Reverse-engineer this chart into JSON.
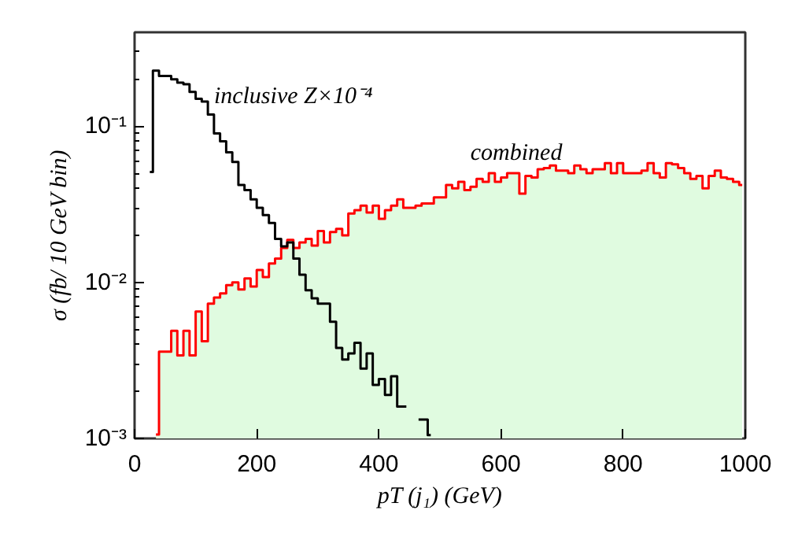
{
  "chart_data": {
    "type": "step",
    "xlabel": "pT (j₁) (GeV)",
    "ylabel": "σ (fb/ 10 GeV bin)",
    "xlim": [
      0,
      1000
    ],
    "xticks": [
      0,
      200,
      400,
      600,
      800,
      1000
    ],
    "ylim": [
      0.001,
      0.4
    ],
    "yticks": [
      {
        "value": 0.001,
        "label": "10⁻³"
      },
      {
        "value": 0.01,
        "label": "10⁻²"
      },
      {
        "value": 0.1,
        "label": "10⁻¹"
      }
    ],
    "log": "y",
    "grid": false,
    "series": [
      {
        "type": "area",
        "name": "combined",
        "color": "#ff0000",
        "x": [
          35,
          45,
          55,
          65,
          75,
          85,
          95,
          105,
          115,
          125,
          135,
          145,
          155,
          165,
          175,
          185,
          195,
          205,
          215,
          225,
          235,
          245,
          255,
          265,
          275,
          285,
          295,
          305,
          315,
          325,
          335,
          345,
          355,
          365,
          375,
          385,
          395,
          405,
          415,
          425,
          435,
          445,
          455,
          465,
          475,
          485,
          495,
          505,
          515,
          525,
          535,
          545,
          555,
          565,
          575,
          585,
          595,
          605,
          615,
          625,
          635,
          645,
          655,
          665,
          675,
          685,
          695,
          705,
          715,
          725,
          735,
          745,
          755,
          765,
          775,
          785,
          795,
          805,
          815,
          825,
          835,
          845,
          855,
          865,
          875,
          885,
          895,
          905,
          915,
          925,
          935,
          945,
          955,
          965,
          975,
          985,
          995
        ],
        "values": [
          0.00106,
          0.0036,
          0.0036,
          0.0049,
          0.0034,
          0.0049,
          0.0034,
          0.0065,
          0.0042,
          0.0073,
          0.008,
          0.0085,
          0.0096,
          0.01,
          0.009,
          0.0106,
          0.0094,
          0.012,
          0.0108,
          0.0132,
          0.0142,
          0.0166,
          0.0187,
          0.0166,
          0.018,
          0.019,
          0.0172,
          0.0213,
          0.018,
          0.021,
          0.022,
          0.02,
          0.0276,
          0.029,
          0.031,
          0.028,
          0.031,
          0.0255,
          0.029,
          0.031,
          0.034,
          0.03,
          0.03,
          0.031,
          0.032,
          0.032,
          0.035,
          0.035,
          0.042,
          0.04,
          0.044,
          0.039,
          0.041,
          0.046,
          0.044,
          0.05,
          0.044,
          0.047,
          0.05,
          0.05,
          0.037,
          0.048,
          0.047,
          0.053,
          0.054,
          0.056,
          0.052,
          0.052,
          0.05,
          0.056,
          0.053,
          0.05,
          0.053,
          0.053,
          0.058,
          0.05,
          0.058,
          0.05,
          0.05,
          0.05,
          0.052,
          0.058,
          0.05,
          0.047,
          0.058,
          0.057,
          0.054,
          0.05,
          0.046,
          0.048,
          0.04,
          0.048,
          0.052,
          0.047,
          0.046,
          0.044,
          0.042
        ]
      },
      {
        "name": "inclusive Z×10⁻⁴",
        "color": "#000000",
        "x": [
          25,
          35,
          45,
          55,
          65,
          75,
          85,
          95,
          105,
          115,
          125,
          135,
          145,
          155,
          165,
          175,
          185,
          195,
          205,
          215,
          225,
          235,
          245,
          255,
          265,
          275,
          285,
          295,
          305,
          315,
          325,
          335,
          345,
          355,
          365,
          375,
          385,
          395,
          405,
          415,
          425,
          435,
          445,
          455,
          465,
          475,
          485
        ],
        "values": [
          0.051,
          0.227,
          0.21,
          0.21,
          0.2,
          0.19,
          0.186,
          0.166,
          0.15,
          0.144,
          0.119,
          0.09,
          0.08,
          0.068,
          0.059,
          0.042,
          0.039,
          0.034,
          0.03,
          0.027,
          0.024,
          0.019,
          0.017,
          0.018,
          0.0142,
          0.0112,
          0.0089,
          0.0079,
          0.0073,
          0.0073,
          0.0056,
          0.0038,
          0.0032,
          0.0035,
          0.0041,
          0.0028,
          0.0035,
          0.0022,
          0.0024,
          0.0019,
          0.0025,
          0.0016,
          0.0016,
          null,
          0.00132,
          0.00132,
          0.00105
        ]
      }
    ]
  }
}
